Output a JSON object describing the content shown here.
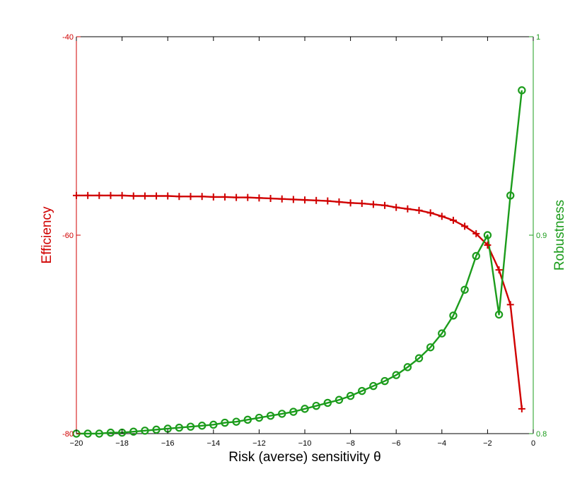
{
  "chart_data": {
    "type": "line",
    "xlabel": "Risk (averse) sensitivity θ",
    "xlim": [
      -20,
      0
    ],
    "x_ticks": [
      "−20",
      "−18",
      "−16",
      "−14",
      "−12",
      "−10",
      "−8",
      "−6",
      "−4",
      "−2",
      "0"
    ],
    "y_left": {
      "label": "Efficiency",
      "color": "#d00000",
      "lim": [
        -80,
        -40
      ],
      "ticks": [
        "-80",
        "-60",
        "-40"
      ]
    },
    "y_right": {
      "label": "Robustness",
      "color": "#1c9c1c",
      "lim": [
        0.8,
        1.0
      ],
      "ticks": [
        "0.8",
        "0.9",
        "1"
      ]
    },
    "x": [
      -20,
      -19.5,
      -19,
      -18.5,
      -18,
      -17.5,
      -17,
      -16.5,
      -16,
      -15.5,
      -15,
      -14.5,
      -14,
      -13.5,
      -13,
      -12.5,
      -12,
      -11.5,
      -11,
      -10.5,
      -10,
      -9.5,
      -9,
      -8.5,
      -8,
      -7.5,
      -7,
      -6.5,
      -6,
      -5.5,
      -5,
      -4.5,
      -4,
      -3.5,
      -3,
      -2.5,
      -2,
      -1.5,
      -1,
      -0.5
    ],
    "series": [
      {
        "axis": "left",
        "marker": "plus",
        "color": "#d00000",
        "values": [
          -56.0,
          -56.0,
          -56.0,
          -56.0,
          -56.0,
          -56.05,
          -56.05,
          -56.05,
          -56.05,
          -56.1,
          -56.1,
          -56.1,
          -56.15,
          -56.15,
          -56.2,
          -56.2,
          -56.25,
          -56.3,
          -56.35,
          -56.4,
          -56.45,
          -56.5,
          -56.55,
          -56.65,
          -56.75,
          -56.8,
          -56.9,
          -57.0,
          -57.2,
          -57.35,
          -57.5,
          -57.75,
          -58.1,
          -58.5,
          -59.1,
          -59.85,
          -61.0,
          -63.5,
          -67.0,
          -77.5
        ]
      },
      {
        "axis": "right",
        "marker": "circle",
        "color": "#1c9c1c",
        "values": [
          0.8,
          0.8,
          0.8,
          0.8005,
          0.8005,
          0.801,
          0.8015,
          0.802,
          0.8025,
          0.803,
          0.8035,
          0.804,
          0.8045,
          0.8055,
          0.806,
          0.807,
          0.808,
          0.809,
          0.81,
          0.811,
          0.8125,
          0.814,
          0.8155,
          0.817,
          0.819,
          0.8215,
          0.824,
          0.8265,
          0.8295,
          0.8335,
          0.838,
          0.8435,
          0.8505,
          0.8595,
          0.8725,
          0.8895,
          0.9,
          0.86,
          0.92,
          0.973
        ]
      }
    ]
  }
}
